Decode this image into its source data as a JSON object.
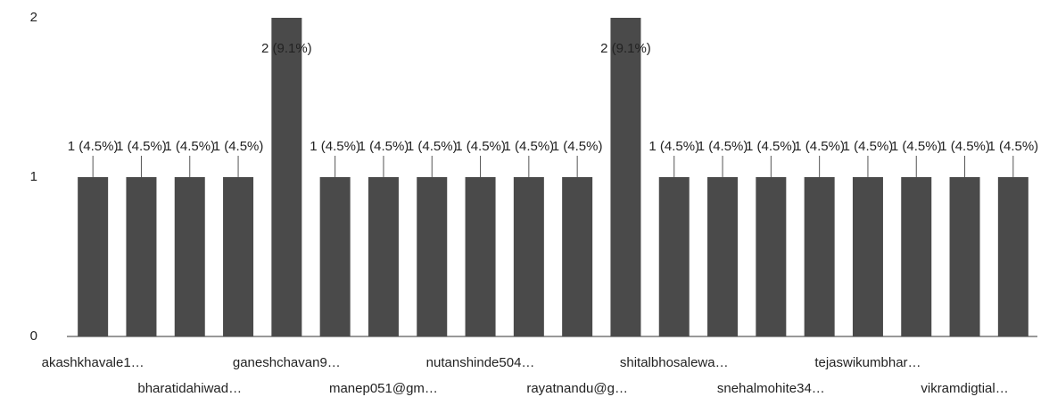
{
  "chart_data": {
    "type": "bar",
    "categories": [
      "akashkhavale1…",
      null,
      "bharatidahiwad…",
      null,
      "ganeshchavan9…",
      null,
      "manep051@gm…",
      null,
      "nutanshinde504…",
      null,
      "rayatnandu@g…",
      null,
      "shitalbhosalewa…",
      null,
      "snehalmohite34…",
      null,
      "tejaswikumbhar…",
      null,
      "vikramdigtial…",
      null
    ],
    "values": [
      1,
      1,
      1,
      1,
      2,
      1,
      1,
      1,
      1,
      1,
      1,
      2,
      1,
      1,
      1,
      1,
      1,
      1,
      1,
      1
    ],
    "value_labels": [
      "1 (4.5%)",
      "1 (4.5%)",
      "1 (4.5%)",
      "1 (4.5%)",
      "2 (9.1%)",
      "1 (4.5%)",
      "1 (4.5%)",
      "1 (4.5%)",
      "1 (4.5%)",
      "1 (4.5%)",
      "1 (4.5%)",
      "2 (9.1%)",
      "1 (4.5%)",
      "1 (4.5%)",
      "1 (4.5%)",
      "1 (4.5%)",
      "1 (4.5%)",
      "1 (4.5%)",
      "1 (4.5%)",
      "1 (4.5%)"
    ],
    "color": "#4a4a4a",
    "ylim": [
      0,
      2
    ],
    "yticks": [
      0,
      1,
      2
    ],
    "grid": false
  }
}
